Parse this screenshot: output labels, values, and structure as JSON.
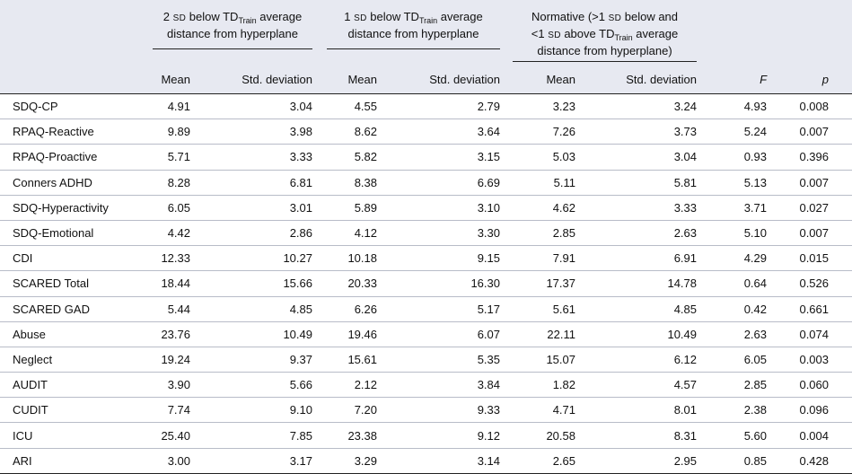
{
  "header": {
    "groups": [
      {
        "pre": "2 ",
        "sd": "SD",
        "mid": " below TD",
        "sub": "Train",
        "post": " average distance from hyperplane"
      },
      {
        "pre": "1 ",
        "sd": "SD",
        "mid": " below TD",
        "sub": "Train",
        "post": " average distance from hyperplane"
      },
      {
        "line1": "Normative (>1 ",
        "sd1": "SD",
        "line1b": " below and",
        "line2": "<1 ",
        "sd2": "SD",
        "line2b": " above TD",
        "sub": "Train",
        "line2c": " average",
        "line3": "distance from hyperplane)"
      }
    ],
    "columns": [
      "Mean",
      "Std. deviation",
      "Mean",
      "Std. deviation",
      "Mean",
      "Std. deviation",
      "F",
      "p"
    ]
  },
  "rows": [
    {
      "label": "SDQ-CP",
      "values": [
        "4.91",
        "3.04",
        "4.55",
        "2.79",
        "3.23",
        "3.24",
        "4.93",
        "0.008"
      ]
    },
    {
      "label": "RPAQ-Reactive",
      "values": [
        "9.89",
        "3.98",
        "8.62",
        "3.64",
        "7.26",
        "3.73",
        "5.24",
        "0.007"
      ]
    },
    {
      "label": "RPAQ-Proactive",
      "values": [
        "5.71",
        "3.33",
        "5.82",
        "3.15",
        "5.03",
        "3.04",
        "0.93",
        "0.396"
      ]
    },
    {
      "label": "Conners ADHD",
      "values": [
        "8.28",
        "6.81",
        "8.38",
        "6.69",
        "5.11",
        "5.81",
        "5.13",
        "0.007"
      ]
    },
    {
      "label": "SDQ-Hyperactivity",
      "values": [
        "6.05",
        "3.01",
        "5.89",
        "3.10",
        "4.62",
        "3.33",
        "3.71",
        "0.027"
      ]
    },
    {
      "label": "SDQ-Emotional",
      "values": [
        "4.42",
        "2.86",
        "4.12",
        "3.30",
        "2.85",
        "2.63",
        "5.10",
        "0.007"
      ]
    },
    {
      "label": "CDI",
      "values": [
        "12.33",
        "10.27",
        "10.18",
        "9.15",
        "7.91",
        "6.91",
        "4.29",
        "0.015"
      ]
    },
    {
      "label": "SCARED Total",
      "values": [
        "18.44",
        "15.66",
        "20.33",
        "16.30",
        "17.37",
        "14.78",
        "0.64",
        "0.526"
      ]
    },
    {
      "label": "SCARED GAD",
      "values": [
        "5.44",
        "4.85",
        "6.26",
        "5.17",
        "5.61",
        "4.85",
        "0.42",
        "0.661"
      ]
    },
    {
      "label": "Abuse",
      "values": [
        "23.76",
        "10.49",
        "19.46",
        "6.07",
        "22.11",
        "10.49",
        "2.63",
        "0.074"
      ]
    },
    {
      "label": "Neglect",
      "values": [
        "19.24",
        "9.37",
        "15.61",
        "5.35",
        "15.07",
        "6.12",
        "6.05",
        "0.003"
      ]
    },
    {
      "label": "AUDIT",
      "values": [
        "3.90",
        "5.66",
        "2.12",
        "3.84",
        "1.82",
        "4.57",
        "2.85",
        "0.060"
      ]
    },
    {
      "label": "CUDIT",
      "values": [
        "7.74",
        "9.10",
        "7.20",
        "9.33",
        "4.71",
        "8.01",
        "2.38",
        "0.096"
      ]
    },
    {
      "label": "ICU",
      "values": [
        "25.40",
        "7.85",
        "23.38",
        "9.12",
        "20.58",
        "8.31",
        "5.60",
        "0.004"
      ]
    },
    {
      "label": "ARI",
      "values": [
        "3.00",
        "3.17",
        "3.29",
        "3.14",
        "2.65",
        "2.95",
        "0.85",
        "0.428"
      ]
    }
  ]
}
